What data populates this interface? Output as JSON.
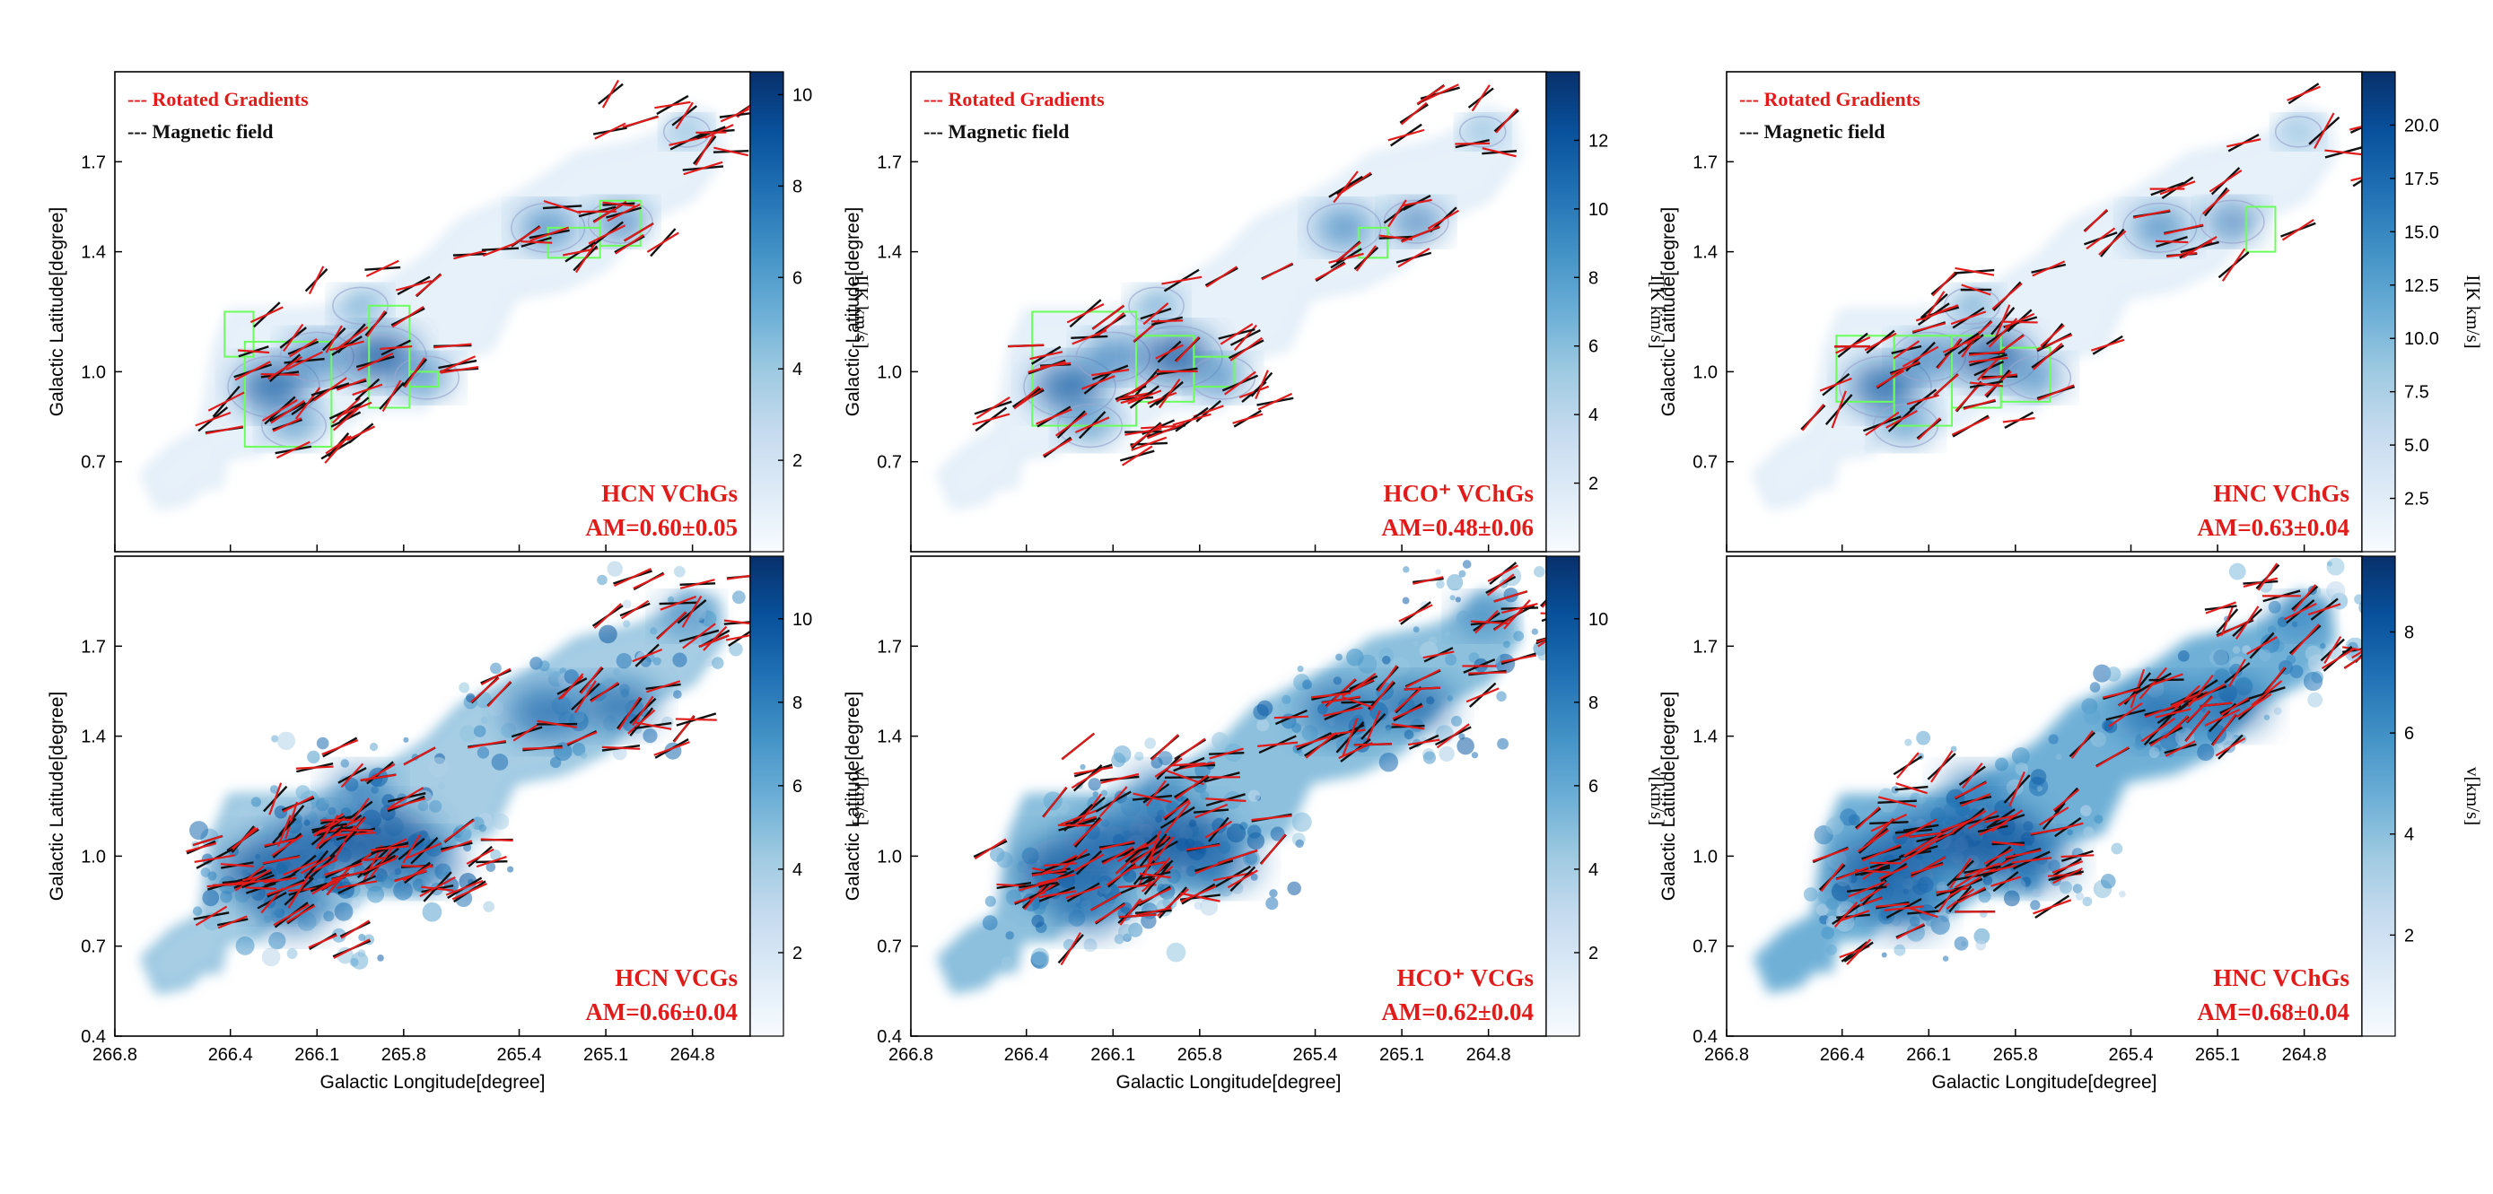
{
  "figure": {
    "columns": [
      "HCN",
      "HCO+",
      "HNC"
    ]
  },
  "legend": {
    "rotated": "--- Rotated Gradients",
    "magnetic": "--- Magnetic field",
    "colors": {
      "rotated": "#e11a1a",
      "magnetic": "#111111"
    }
  },
  "colors": {
    "cmap": [
      "#f7fbff",
      "#deebf7",
      "#c6dbef",
      "#9ecae1",
      "#6baed6",
      "#4292c6",
      "#2171b5",
      "#08519c",
      "#08306b"
    ],
    "box": "#6bff5c",
    "label": "#e11a1a"
  },
  "chart_data": [
    {
      "type": "heatmap",
      "id": "hcn_vchgs",
      "molecule": "HCN",
      "label_line1": "HCN VChGs",
      "label_line2": "AM=0.60±0.05",
      "xlabel": "",
      "ylabel": "Galactic Latitude[degree]",
      "xlim": [
        266.8,
        264.6
      ],
      "ylim": [
        0.4,
        2.0
      ],
      "yticks": [
        0.7,
        1.0,
        1.4,
        1.7
      ],
      "xticks": [],
      "colorbar": {
        "label": "I[K km/s]",
        "range": [
          0,
          10.5
        ],
        "ticks": [
          2,
          4,
          6,
          8,
          10
        ]
      }
    },
    {
      "type": "heatmap",
      "id": "hcop_vchgs",
      "molecule": "HCO+",
      "label_line1": "HCO⁺ VChGs",
      "label_line2": "AM=0.48±0.06",
      "xlabel": "",
      "ylabel": "Galactic Latitude[degree]",
      "xlim": [
        266.8,
        264.6
      ],
      "ylim": [
        0.4,
        2.0
      ],
      "yticks": [
        0.7,
        1.0,
        1.4,
        1.7
      ],
      "xticks": [],
      "colorbar": {
        "label": "I[K km/s]",
        "range": [
          0,
          14
        ],
        "ticks": [
          2,
          4,
          6,
          8,
          10,
          12
        ]
      }
    },
    {
      "type": "heatmap",
      "id": "hnc_vchgs",
      "molecule": "HNC",
      "label_line1": "HNC VChGs",
      "label_line2": "AM=0.63±0.04",
      "xlabel": "",
      "ylabel": "Galactic Latitude[degree]",
      "xlim": [
        266.8,
        264.6
      ],
      "ylim": [
        0.4,
        2.0
      ],
      "yticks": [
        0.7,
        1.0,
        1.4,
        1.7
      ],
      "xticks": [],
      "colorbar": {
        "label": "I[K km/s]",
        "range": [
          0,
          22.5
        ],
        "ticks": [
          2.5,
          5.0,
          7.5,
          10.0,
          12.5,
          15.0,
          17.5,
          20.0
        ]
      }
    },
    {
      "type": "heatmap",
      "id": "hcn_vcgs",
      "molecule": "HCN",
      "label_line1": "HCN VCGs",
      "label_line2": "AM=0.66±0.04",
      "xlabel": "Galactic Longitude[degree]",
      "ylabel": "Galactic Latitude[degree]",
      "xlim": [
        266.8,
        264.6
      ],
      "ylim": [
        0.4,
        2.0
      ],
      "yticks": [
        0.4,
        0.7,
        1.0,
        1.4,
        1.7
      ],
      "xticks": [
        266.8,
        266.4,
        266.1,
        265.8,
        265.4,
        265.1,
        264.8
      ],
      "colorbar": {
        "label": "v[km/s]",
        "range": [
          0,
          11.5
        ],
        "ticks": [
          2,
          4,
          6,
          8,
          10
        ]
      }
    },
    {
      "type": "heatmap",
      "id": "hcop_vcgs",
      "molecule": "HCO+",
      "label_line1": "HCO⁺ VCGs",
      "label_line2": "AM=0.62±0.04",
      "xlabel": "Galactic Longitude[degree]",
      "ylabel": "Galactic Latitude[degree]",
      "xlim": [
        266.8,
        264.6
      ],
      "ylim": [
        0.4,
        2.0
      ],
      "yticks": [
        0.4,
        0.7,
        1.0,
        1.4,
        1.7
      ],
      "xticks": [
        266.8,
        266.4,
        266.1,
        265.8,
        265.4,
        265.1,
        264.8
      ],
      "colorbar": {
        "label": "v[km/s]",
        "range": [
          0,
          11.5
        ],
        "ticks": [
          2,
          4,
          6,
          8,
          10
        ]
      }
    },
    {
      "type": "heatmap",
      "id": "hnc_vchgs_bottom",
      "molecule": "HNC",
      "label_line1": "HNC VChGs",
      "label_line2": "AM=0.68±0.04",
      "xlabel": "Galactic Longitude[degree]",
      "ylabel": "Galactic Latitude[degree]",
      "xlim": [
        266.8,
        264.6
      ],
      "ylim": [
        0.4,
        2.0
      ],
      "yticks": [
        0.4,
        0.7,
        1.0,
        1.4,
        1.7
      ],
      "xticks": [
        266.8,
        266.4,
        266.1,
        265.8,
        265.4,
        265.1,
        264.8
      ],
      "colorbar": {
        "label": "v[km/s]",
        "range": [
          0,
          9.5
        ],
        "ticks": [
          2,
          4,
          6,
          8
        ]
      }
    }
  ]
}
